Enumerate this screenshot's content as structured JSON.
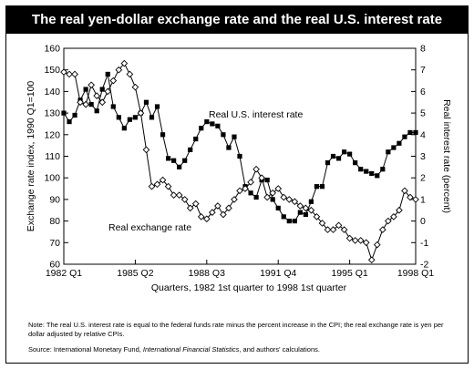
{
  "title": "The real yen-dollar exchange rate and the real U.S. interest rate",
  "note": "Note: The real U.S. interest rate is equal to the federal funds rate minus the percent increase in the CPI; the real exchange rate is yen per dollar adjusted by relative CPIs.",
  "source_prefix": "Source: International Monetary Fund, ",
  "source_italic": "International Financial Statistics",
  "source_suffix": ", and authors' calculations.",
  "chart_data": {
    "type": "line",
    "xlabel": "Quarters, 1982 1st quarter to 1998 1st quarter",
    "ylabel_left": "Exchange rate index, 1990 Q1=100",
    "ylabel_right": "Real interest rate (percent)",
    "ylim_left": [
      60,
      160
    ],
    "yticks_left": [
      60,
      70,
      80,
      90,
      100,
      110,
      120,
      130,
      140,
      150,
      160
    ],
    "ylim_right": [
      -2,
      8
    ],
    "yticks_right": [
      -2,
      -1,
      0,
      1,
      2,
      3,
      4,
      5,
      6,
      7,
      8
    ],
    "xtick_labels": [
      "1982 Q1",
      "1985 Q2",
      "1988 Q3",
      "1991 Q4",
      "1995 Q1",
      "1998 Q1"
    ],
    "x_range_quarters": [
      0,
      64
    ],
    "grid": false,
    "series": [
      {
        "name": "Real U.S. interest rate",
        "axis": "right",
        "marker": "square",
        "values": [
          5.0,
          4.6,
          4.9,
          5.6,
          6.1,
          5.4,
          5.1,
          6.1,
          6.8,
          5.3,
          4.8,
          4.3,
          4.7,
          4.8,
          5.0,
          5.5,
          4.8,
          5.3,
          4.0,
          2.9,
          2.8,
          2.5,
          2.8,
          3.3,
          3.8,
          4.3,
          4.6,
          4.5,
          4.4,
          4.0,
          3.4,
          3.9,
          3.0,
          1.6,
          1.3,
          1.1,
          1.9,
          1.9,
          1.0,
          0.6,
          0.2,
          0.0,
          0.0,
          0.4,
          0.3,
          0.9,
          1.6,
          1.6,
          2.7,
          3.0,
          2.9,
          3.2,
          3.1,
          2.7,
          2.4,
          2.3,
          2.2,
          2.1,
          2.4,
          3.2,
          3.4,
          3.6,
          3.9,
          4.1,
          4.1
        ]
      },
      {
        "name": "Real exchange rate",
        "axis": "left",
        "marker": "diamond-open",
        "values": [
          149,
          148,
          148,
          135,
          134,
          143,
          138,
          135,
          140,
          145,
          150,
          153,
          148,
          142,
          130,
          113,
          96,
          97,
          99,
          96,
          92,
          92,
          90,
          86,
          88,
          82,
          81,
          84,
          87,
          83,
          86,
          90,
          94,
          95,
          98,
          104,
          100,
          91,
          93,
          95,
          91,
          90,
          89,
          87,
          86,
          85,
          82,
          79,
          76,
          76,
          78,
          76,
          72,
          71,
          71,
          70,
          62,
          69,
          76,
          80,
          82,
          85,
          94,
          91,
          90
        ]
      }
    ],
    "annotations": [
      "Real U.S. interest rate",
      "Real exchange rate"
    ]
  }
}
